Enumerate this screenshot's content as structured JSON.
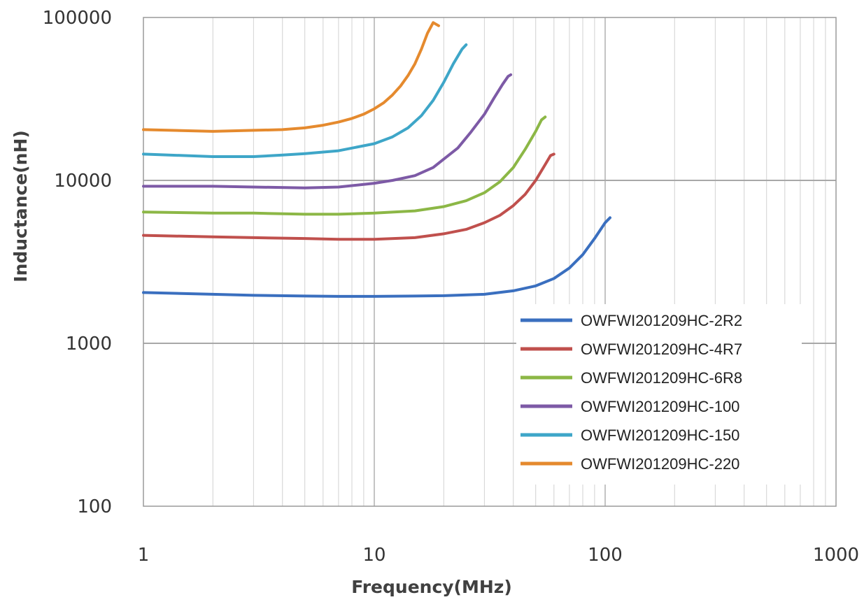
{
  "chart_data": {
    "type": "line",
    "title": "",
    "xlabel": "Frequency(MHz)",
    "ylabel": "Inductance(nH)",
    "x_scale": "log",
    "y_scale": "log",
    "xlim": [
      1,
      1000
    ],
    "ylim": [
      100,
      100000
    ],
    "x_ticks": [
      "1",
      "10",
      "100",
      "1000"
    ],
    "y_ticks": [
      "100",
      "1000",
      "10000",
      "100000"
    ],
    "grid": true,
    "legend_position": "bottom-right",
    "series": [
      {
        "name": "OWFWI201209HC-2R2",
        "color": "#3a6fbf",
        "x": [
          1,
          2,
          3,
          5,
          7,
          10,
          15,
          20,
          30,
          40,
          50,
          60,
          70,
          80,
          90,
          100,
          105
        ],
        "y": [
          2050,
          2000,
          1970,
          1950,
          1940,
          1940,
          1950,
          1960,
          2000,
          2100,
          2250,
          2500,
          2900,
          3500,
          4400,
          5500,
          5900
        ]
      },
      {
        "name": "OWFWI201209HC-4R7",
        "color": "#c0504d",
        "x": [
          1,
          2,
          3,
          5,
          7,
          10,
          15,
          20,
          25,
          30,
          35,
          40,
          45,
          50,
          55,
          58,
          60
        ],
        "y": [
          4600,
          4500,
          4450,
          4400,
          4350,
          4350,
          4450,
          4700,
          5000,
          5500,
          6100,
          7000,
          8200,
          10000,
          12500,
          14200,
          14500
        ]
      },
      {
        "name": "OWFWI201209HC-6R8",
        "color": "#8cb746",
        "x": [
          1,
          2,
          3,
          5,
          7,
          10,
          15,
          20,
          25,
          30,
          35,
          40,
          45,
          50,
          53,
          55
        ],
        "y": [
          6400,
          6300,
          6300,
          6200,
          6200,
          6300,
          6500,
          6900,
          7500,
          8400,
          9800,
          12000,
          15500,
          20000,
          23500,
          24500
        ]
      },
      {
        "name": "OWFWI201209HC-100",
        "color": "#7d5aa6",
        "x": [
          1,
          2,
          3,
          5,
          7,
          10,
          12,
          15,
          18,
          20,
          23,
          26,
          30,
          33,
          36,
          38,
          39
        ],
        "y": [
          9200,
          9200,
          9100,
          9000,
          9100,
          9600,
          10000,
          10700,
          12000,
          13500,
          15800,
          19500,
          25500,
          32000,
          39000,
          43500,
          44500
        ]
      },
      {
        "name": "OWFWI201209HC-150",
        "color": "#3ea6c8",
        "x": [
          1,
          2,
          3,
          4,
          5,
          7,
          10,
          12,
          14,
          16,
          18,
          20,
          22,
          24,
          25
        ],
        "y": [
          14500,
          14000,
          14000,
          14300,
          14600,
          15200,
          16800,
          18500,
          21000,
          25000,
          31000,
          40000,
          52000,
          64000,
          68000
        ]
      },
      {
        "name": "OWFWI201209HC-220",
        "color": "#e58a2e",
        "x": [
          1,
          2,
          3,
          4,
          5,
          6,
          7,
          8,
          9,
          10,
          11,
          12,
          13,
          14,
          15,
          16,
          17,
          18,
          19
        ],
        "y": [
          20500,
          20000,
          20300,
          20500,
          21000,
          21800,
          22800,
          24000,
          25500,
          27500,
          30000,
          33500,
          38000,
          44000,
          52000,
          64000,
          80000,
          93000,
          89000
        ]
      }
    ]
  }
}
